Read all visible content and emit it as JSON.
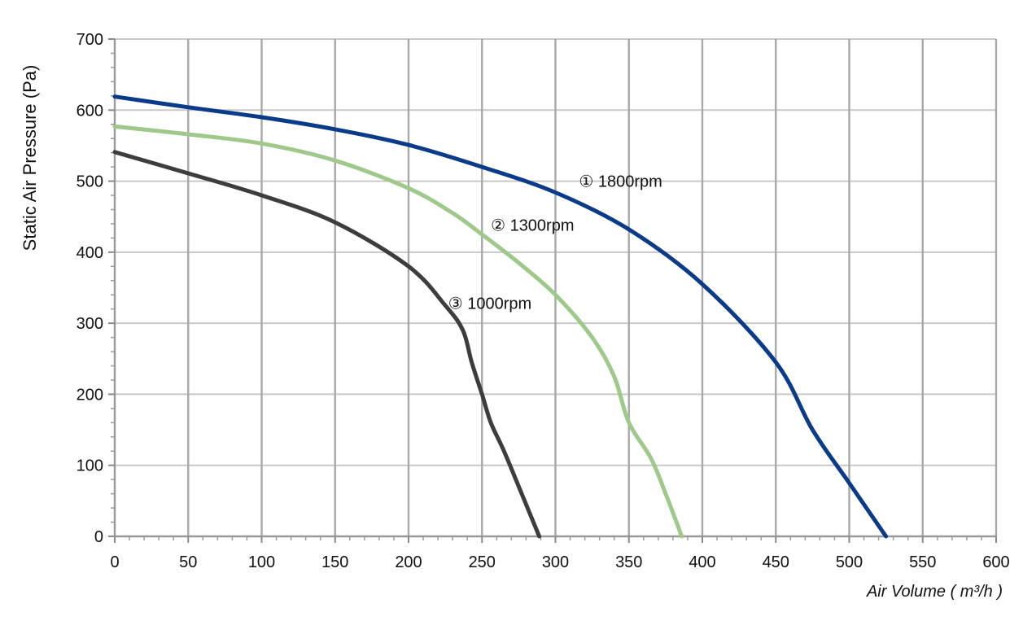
{
  "chart_data": {
    "type": "line",
    "title": "",
    "xlabel": "Air Volume ( m³/h )",
    "ylabel": "Static Air Pressure  (Pa)",
    "xlim": [
      0,
      600
    ],
    "ylim": [
      0,
      700
    ],
    "xticks": [
      0,
      50,
      100,
      150,
      200,
      250,
      300,
      350,
      400,
      450,
      500,
      550,
      600
    ],
    "yticks": [
      0,
      100,
      200,
      300,
      400,
      500,
      600,
      700
    ],
    "x_tick_labels": [
      "0",
      "50",
      "100",
      "150",
      "200",
      "250",
      "300",
      "350",
      "400",
      "450",
      "500",
      "550",
      "600"
    ],
    "y_tick_labels": [
      "0",
      "100",
      "200",
      "300",
      "400",
      "500",
      "600",
      "700"
    ],
    "grid": true,
    "legend": "inline labels",
    "series": [
      {
        "name": "① 1800rpm",
        "color": "#0a3a8a",
        "label_at": [
          316,
          500
        ],
        "points": [
          [
            0,
            619
          ],
          [
            50,
            604
          ],
          [
            100,
            590
          ],
          [
            150,
            573
          ],
          [
            200,
            551
          ],
          [
            250,
            520
          ],
          [
            300,
            484
          ],
          [
            350,
            432
          ],
          [
            400,
            355
          ],
          [
            450,
            245
          ],
          [
            475,
            150
          ],
          [
            500,
            75
          ],
          [
            525,
            0
          ]
        ]
      },
      {
        "name": "② 1300rpm",
        "color": "#9ec98a",
        "label_at": [
          256,
          438
        ],
        "points": [
          [
            0,
            577
          ],
          [
            50,
            566
          ],
          [
            100,
            553
          ],
          [
            150,
            529
          ],
          [
            200,
            490
          ],
          [
            230,
            455
          ],
          [
            250,
            425
          ],
          [
            275,
            385
          ],
          [
            300,
            340
          ],
          [
            325,
            280
          ],
          [
            340,
            225
          ],
          [
            350,
            160
          ],
          [
            365,
            110
          ],
          [
            375,
            60
          ],
          [
            386,
            0
          ]
        ]
      },
      {
        "name": "③ 1000rpm",
        "color": "#3d3d3d",
        "label_at": [
          227,
          328
        ],
        "points": [
          [
            0,
            541
          ],
          [
            50,
            511
          ],
          [
            100,
            480
          ],
          [
            150,
            442
          ],
          [
            200,
            380
          ],
          [
            225,
            325
          ],
          [
            237,
            290
          ],
          [
            243,
            245
          ],
          [
            250,
            200
          ],
          [
            256,
            160
          ],
          [
            265,
            120
          ],
          [
            277,
            60
          ],
          [
            289,
            0
          ]
        ]
      }
    ]
  }
}
